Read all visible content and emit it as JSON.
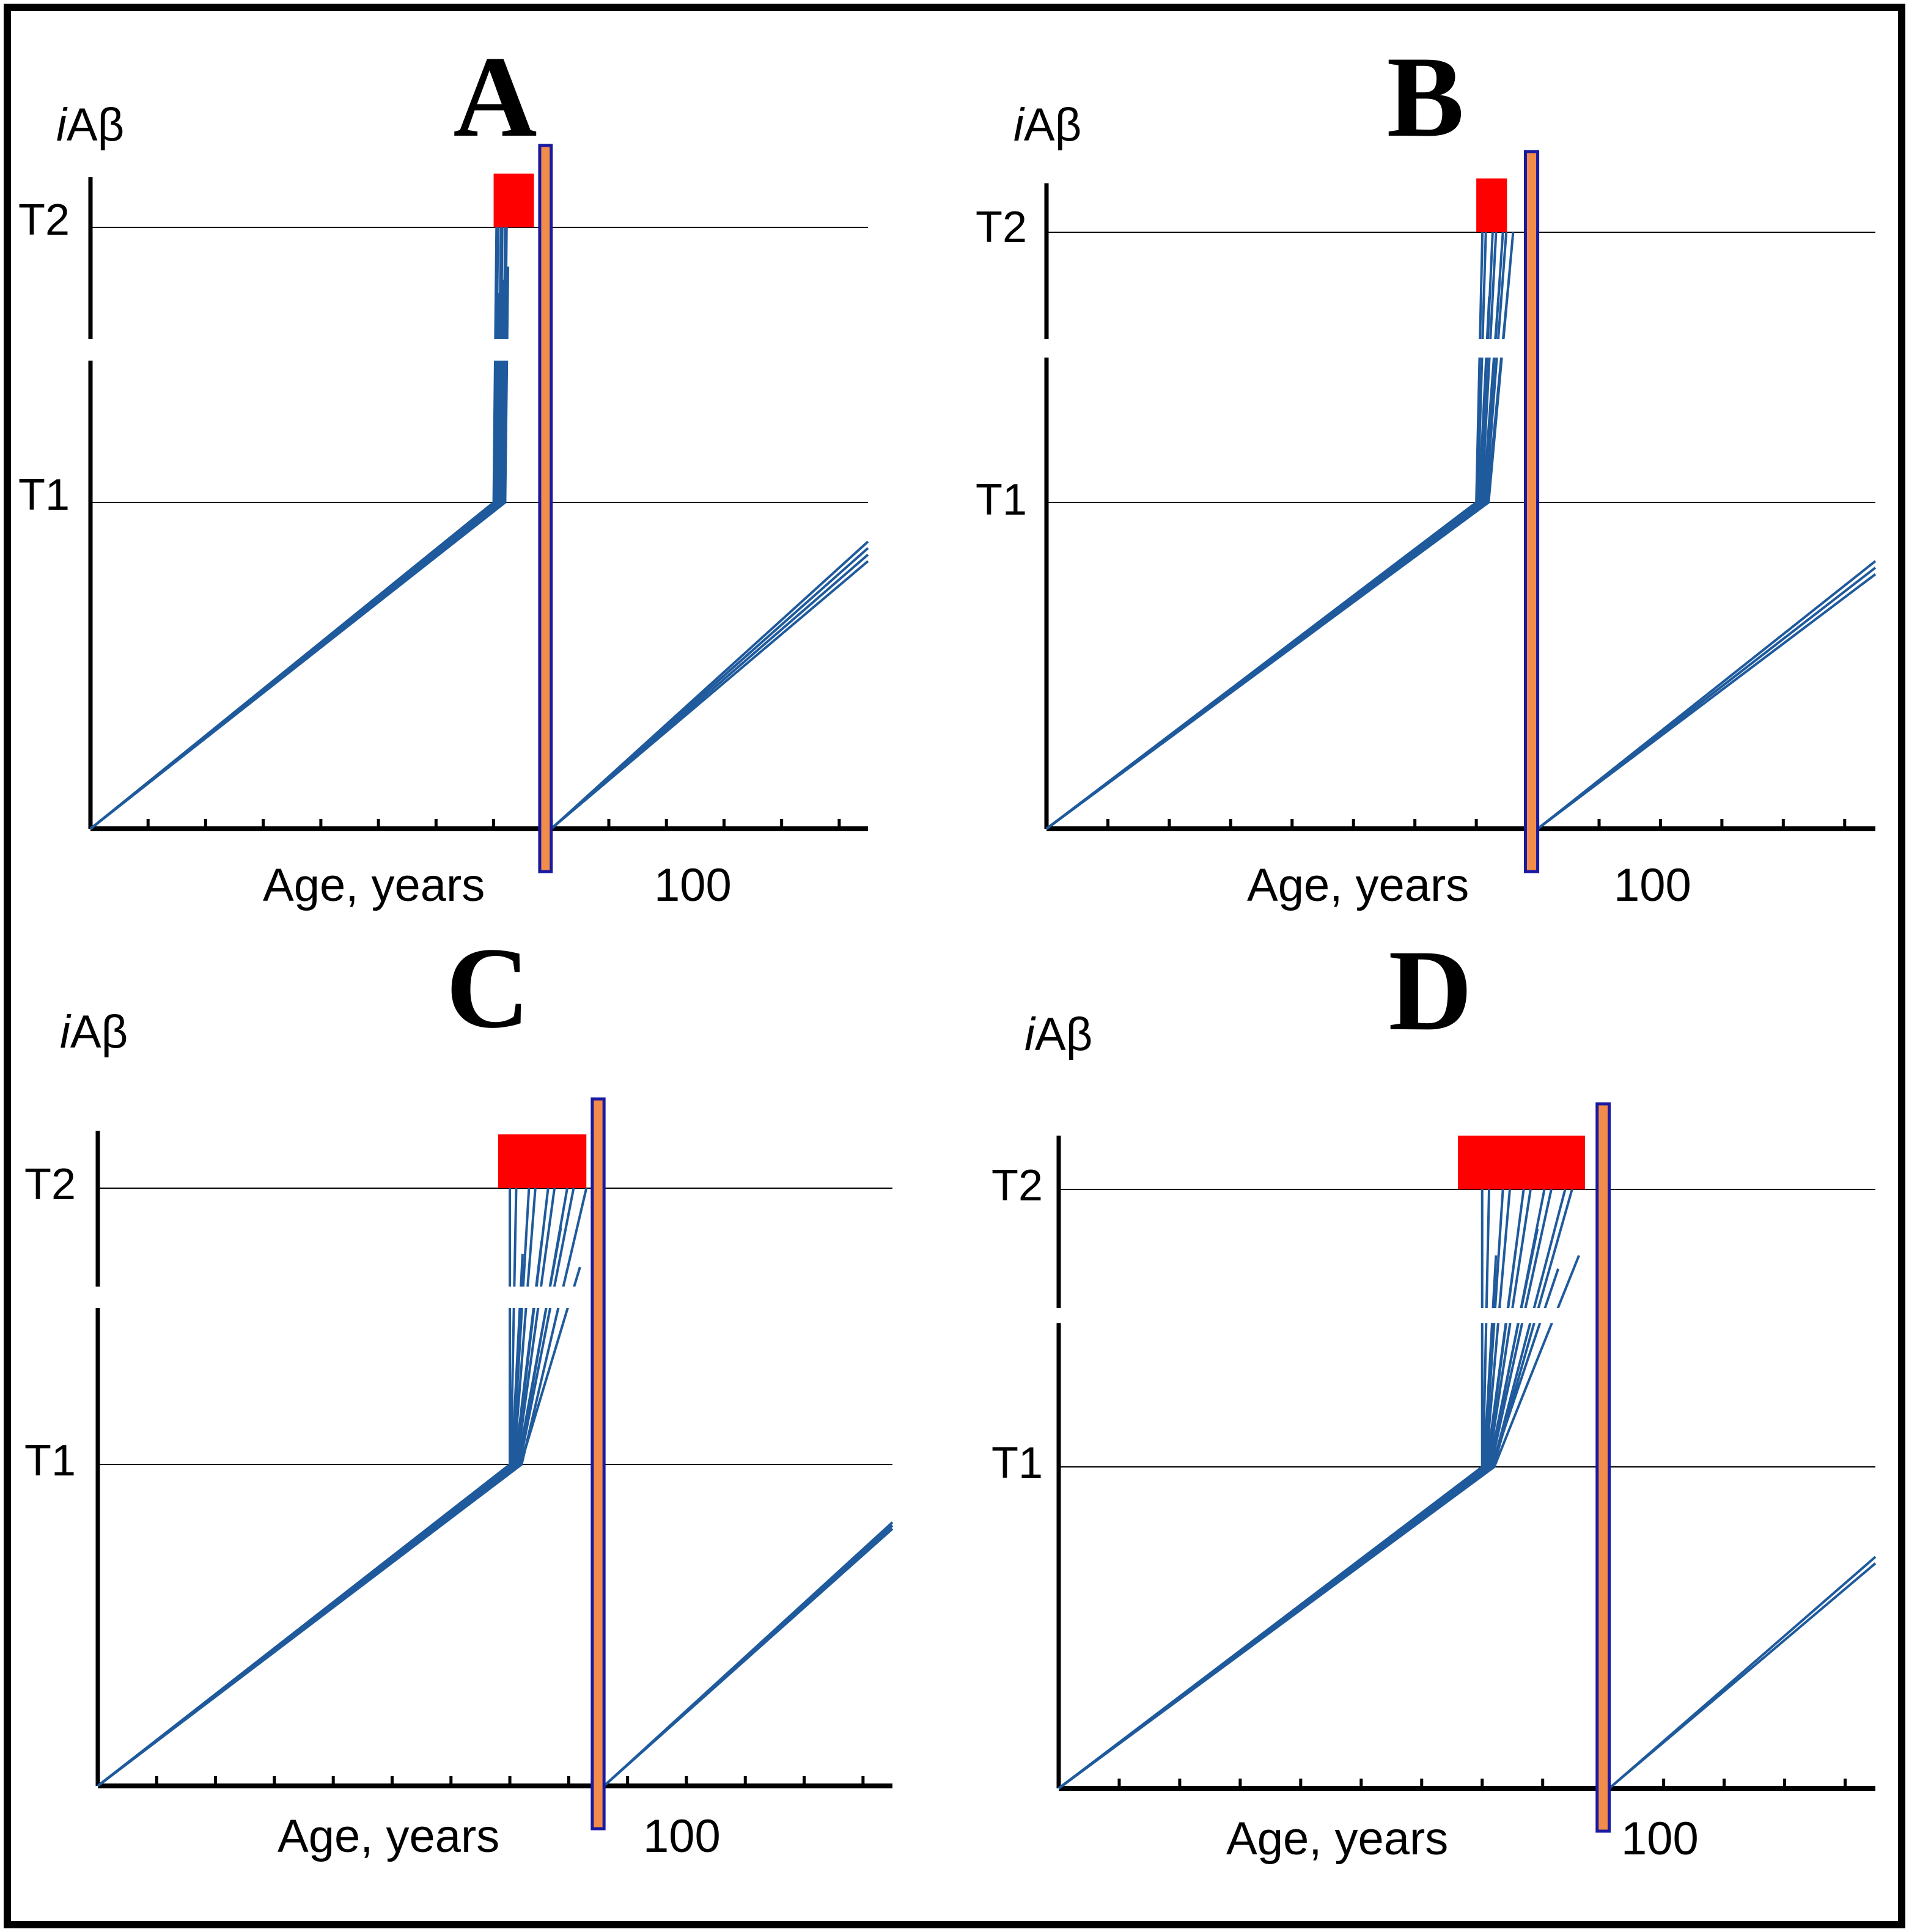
{
  "figure": {
    "frame_color": "#000000",
    "line_color": "#1f5a9c",
    "threshold_color": "#000000",
    "red_zone_color": "#ff0000",
    "bar_fill_color": "#f28c4a",
    "bar_edge_color": "#1a1aa0"
  },
  "chart_data": [
    {
      "type": "line",
      "panel": "A",
      "title": "A",
      "ylabel_prefix": "i",
      "ylabel_main": "Aβ",
      "xlabel": "Age, years",
      "xtick_label": "100",
      "xtick_label_at": 100,
      "threshold_labels": [
        "T1",
        "T2"
      ],
      "xlim": [
        0,
        135
      ],
      "ylim": [
        0,
        110
      ],
      "t1": 50,
      "t2": 92,
      "tick_step": 10,
      "kink_x": [
        70,
        72
      ],
      "fan_end_x": [
        70.5,
        72.5
      ],
      "fan_count": 9,
      "red_zone_x": [
        70,
        77
      ],
      "drug_bar_x": [
        78,
        80
      ],
      "regrowth_start_x": 80,
      "regrowth_end": {
        "x": 135,
        "y": [
          41,
          44
        ]
      },
      "regrowth_count": 4
    },
    {
      "type": "line",
      "panel": "B",
      "title": "B",
      "ylabel_prefix": "i",
      "ylabel_main": "Aβ",
      "xlabel": "Age, years",
      "xtick_label": "100",
      "xtick_label_at": 100,
      "threshold_labels": [
        "T1",
        "T2"
      ],
      "xlim": [
        0,
        135
      ],
      "ylim": [
        0,
        110
      ],
      "t1": 50,
      "t2": 92,
      "tick_step": 10,
      "kink_x": [
        70,
        72
      ],
      "fan_end_x": [
        71,
        76
      ],
      "fan_count": 10,
      "red_zone_x": [
        70,
        75
      ],
      "drug_bar_x": [
        78,
        80
      ],
      "regrowth_start_x": 80,
      "regrowth_end": {
        "x": 135,
        "y": [
          39,
          41
        ]
      },
      "regrowth_count": 3
    },
    {
      "type": "line",
      "panel": "C",
      "title": "C",
      "ylabel_prefix": "i",
      "ylabel_main": "Aβ",
      "xlabel": "Age, years",
      "xtick_label": "100",
      "xtick_label_at": 100,
      "threshold_labels": [
        "T1",
        "T2"
      ],
      "xlim": [
        0,
        135
      ],
      "ylim": [
        0,
        110
      ],
      "t1": 50,
      "t2": 92,
      "tick_step": 10,
      "kink_x": [
        70,
        72
      ],
      "fan_end_x": [
        70,
        83
      ],
      "fan_count": 13,
      "red_zone_x": [
        68,
        83
      ],
      "drug_bar_x": [
        84,
        86
      ],
      "regrowth_start_x": 86,
      "regrowth_end": {
        "x": 135,
        "y": [
          40,
          41
        ]
      },
      "regrowth_count": 3
    },
    {
      "type": "line",
      "panel": "D",
      "title": "D",
      "ylabel_prefix": "i",
      "ylabel_main": "Aβ",
      "xlabel": "Age, years",
      "xtick_label": "100",
      "xtick_label_at": 100,
      "threshold_labels": [
        "T1",
        "T2"
      ],
      "xlim": [
        0,
        135
      ],
      "ylim": [
        0,
        110
      ],
      "t1": 50,
      "t2": 92,
      "tick_step": 10,
      "kink_x": [
        70,
        72
      ],
      "fan_end_x": [
        70,
        86
      ],
      "fan_count": 15,
      "red_zone_x": [
        66,
        87
      ],
      "drug_bar_x": [
        89,
        91
      ],
      "regrowth_start_x": 91,
      "regrowth_end": {
        "x": 135,
        "y": [
          35,
          36
        ]
      },
      "regrowth_count": 2
    }
  ]
}
